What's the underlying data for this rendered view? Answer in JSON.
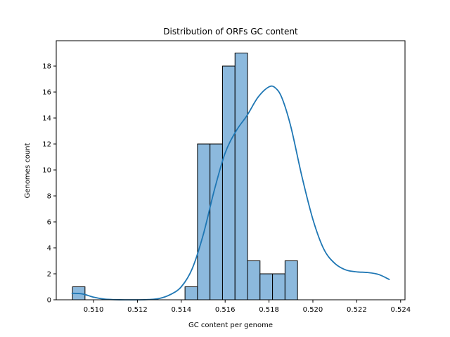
{
  "chart_data": {
    "type": "bar",
    "title": "Distribution of ORFs GC content",
    "xlabel": "GC content per genome",
    "ylabel": "Genomes count",
    "xlim": [
      0.5083,
      0.5242
    ],
    "ylim": [
      0,
      19.95
    ],
    "xticks": [
      0.51,
      0.512,
      0.514,
      0.516,
      0.518,
      0.52,
      0.522,
      0.524
    ],
    "xtick_labels": [
      "0.510",
      "0.512",
      "0.514",
      "0.516",
      "0.518",
      "0.520",
      "0.522",
      "0.524"
    ],
    "yticks": [
      0,
      2,
      4,
      6,
      8,
      10,
      12,
      14,
      16,
      18
    ],
    "ytick_labels": [
      "0",
      "2",
      "4",
      "6",
      "8",
      "10",
      "12",
      "14",
      "16",
      "18"
    ],
    "grid": false,
    "bins": [
      {
        "left": 0.50904,
        "right": 0.50961,
        "count": 1
      },
      {
        "left": 0.50961,
        "right": 0.51018,
        "count": 0
      },
      {
        "left": 0.51018,
        "right": 0.51075,
        "count": 0
      },
      {
        "left": 0.51075,
        "right": 0.51132,
        "count": 0
      },
      {
        "left": 0.51132,
        "right": 0.51189,
        "count": 0
      },
      {
        "left": 0.51189,
        "right": 0.51246,
        "count": 0
      },
      {
        "left": 0.51246,
        "right": 0.51303,
        "count": 0
      },
      {
        "left": 0.51303,
        "right": 0.5136,
        "count": 0
      },
      {
        "left": 0.5136,
        "right": 0.51417,
        "count": 0
      },
      {
        "left": 0.51417,
        "right": 0.51474,
        "count": 1
      },
      {
        "left": 0.51474,
        "right": 0.51531,
        "count": 12
      },
      {
        "left": 0.51531,
        "right": 0.51588,
        "count": 12
      },
      {
        "left": 0.51588,
        "right": 0.51645,
        "count": 18
      },
      {
        "left": 0.51645,
        "right": 0.51702,
        "count": 19
      },
      {
        "left": 0.51702,
        "right": 0.51759,
        "count": 3
      },
      {
        "left": 0.51759,
        "right": 0.51816,
        "count": 2
      },
      {
        "left": 0.51816,
        "right": 0.51873,
        "count": 2
      },
      {
        "left": 0.51873,
        "right": 0.5193,
        "count": 3
      }
    ],
    "kde": {
      "x": [
        0.509,
        0.5095,
        0.51,
        0.5105,
        0.511,
        0.5115,
        0.512,
        0.5125,
        0.513,
        0.5135,
        0.514,
        0.5145,
        0.515,
        0.5155,
        0.516,
        0.5165,
        0.517,
        0.5175,
        0.518,
        0.5183,
        0.5186,
        0.519,
        0.5195,
        0.52,
        0.5205,
        0.521,
        0.5215,
        0.522,
        0.5225,
        0.523,
        0.5235
      ],
      "y": [
        0.5,
        0.45,
        0.2,
        0.05,
        0.01,
        0.0,
        0.0,
        0.02,
        0.1,
        0.4,
        1.0,
        2.4,
        5.0,
        8.4,
        11.3,
        13.0,
        14.2,
        15.6,
        16.4,
        16.3,
        15.5,
        13.3,
        9.5,
        6.2,
        3.9,
        2.8,
        2.3,
        2.15,
        2.1,
        1.95,
        1.55
      ]
    },
    "colors": {
      "bar_fill": "#8cb9dd",
      "bar_edge": "#000000",
      "kde_line": "#1f77b4"
    }
  }
}
